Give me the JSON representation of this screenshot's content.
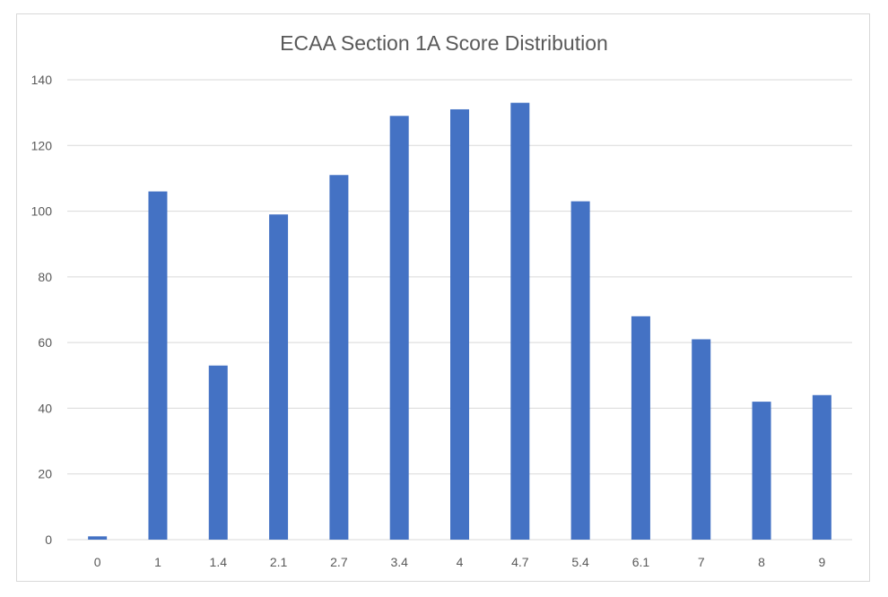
{
  "chart_data": {
    "type": "bar",
    "title": "ECAA Section 1A Score Distribution",
    "xlabel": "",
    "ylabel": "",
    "categories": [
      "0",
      "1",
      "1.4",
      "2.1",
      "2.7",
      "3.4",
      "4",
      "4.7",
      "5.4",
      "6.1",
      "7",
      "8",
      "9"
    ],
    "values": [
      1,
      106,
      53,
      99,
      111,
      129,
      131,
      133,
      103,
      68,
      61,
      42,
      44
    ],
    "ylim": [
      0,
      140
    ],
    "yticks": [
      0,
      20,
      40,
      60,
      80,
      100,
      120,
      140
    ],
    "grid": true,
    "legend": "none",
    "bar_color": "#4472c4"
  }
}
